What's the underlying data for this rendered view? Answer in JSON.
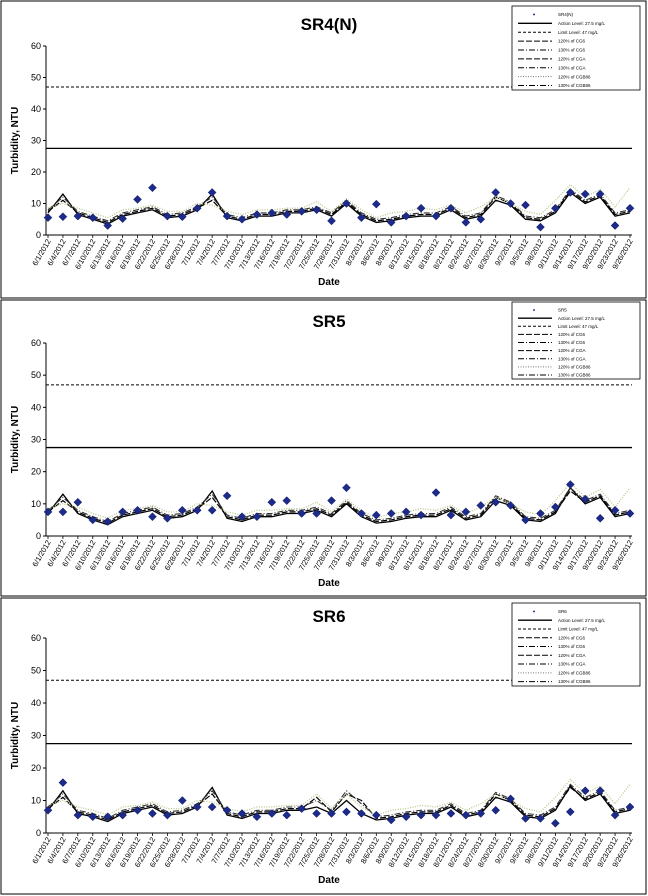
{
  "chart_data": [
    {
      "type": "line",
      "title": "SR4(N)",
      "xlabel": "Date",
      "ylabel": "Turbidity, NTU",
      "ylim": [
        0,
        60
      ],
      "yticks": [
        "0",
        "10",
        "20",
        "30",
        "40",
        "50",
        "60"
      ],
      "x": [
        "6/1/2012",
        "6/4/2012",
        "6/7/2012",
        "6/10/2012",
        "6/13/2012",
        "6/16/2012",
        "6/19/2012",
        "6/22/2012",
        "6/25/2012",
        "6/28/2012",
        "7/1/2012",
        "7/4/2012",
        "7/7/2012",
        "7/10/2012",
        "7/13/2012",
        "7/16/2012",
        "7/19/2012",
        "7/22/2012",
        "7/25/2012",
        "7/28/2012",
        "7/31/2012",
        "8/3/2012",
        "8/6/2012",
        "8/9/2012",
        "8/12/2012",
        "8/15/2012",
        "8/18/2012",
        "8/21/2012",
        "8/24/2012",
        "8/27/2012",
        "8/30/2012",
        "9/2/2012",
        "9/5/2012",
        "9/8/2012",
        "9/11/2012",
        "9/14/2012",
        "9/17/2012",
        "9/20/2012",
        "9/23/2012",
        "9/26/2012"
      ],
      "legend": [
        "SR4(N)",
        "Action Level: 27.5 mg/L",
        "Limit Level: 47 mg/L",
        "120% of CG6",
        "130% of CG6",
        "120% of CGA",
        "130% of CGA",
        "120% of CGB86",
        "130% of CGB86"
      ],
      "legend_position": "top-right",
      "reference_lines": [
        {
          "name": "Action Level: 27.5 mg/L",
          "value": 27.5,
          "style": "solid"
        },
        {
          "name": "Limit Level: 47 mg/L",
          "value": 47,
          "style": "dashed"
        }
      ],
      "series": [
        {
          "name": "SR4(N)",
          "style": "markers",
          "values": [
            5.5,
            5.8,
            6,
            5.5,
            3,
            5.2,
            11.3,
            15,
            6,
            5.8,
            8.5,
            13.5,
            6,
            5,
            6.5,
            7,
            6.5,
            7.5,
            8,
            4.5,
            10,
            5.5,
            9.8,
            4,
            6,
            8.5,
            6,
            8.5,
            4,
            5,
            13.5,
            10,
            9.5,
            2.5,
            8.5,
            13.5,
            13,
            13,
            3,
            8.5
          ]
        },
        {
          "name": "120% of CG6",
          "style": "solid",
          "values": [
            7,
            13,
            6.5,
            5,
            3.5,
            6,
            7,
            8,
            5.5,
            6,
            8,
            13,
            5.5,
            4.5,
            6,
            6,
            7,
            7,
            8,
            6,
            10,
            6,
            4,
            4.5,
            5.5,
            6,
            6,
            8,
            5,
            6,
            11,
            9.5,
            5,
            4.5,
            7,
            13.5,
            10,
            12,
            6,
            7
          ]
        },
        {
          "name": "130% of CG6",
          "style": "dash",
          "values": [
            7.5,
            11,
            7,
            5.5,
            4,
            6.5,
            7.5,
            8.5,
            6,
            6.5,
            8.5,
            11,
            6,
            5,
            6.5,
            6.5,
            7.5,
            7.5,
            8.5,
            6.5,
            10.5,
            6.5,
            4.5,
            5,
            6,
            6.5,
            6.5,
            8.5,
            5.5,
            6.5,
            12,
            10,
            5.5,
            5,
            7.5,
            14,
            10.5,
            12.5,
            6.5,
            7.5
          ]
        },
        {
          "name": "120% of CGA",
          "style": "dashdot",
          "values": [
            8,
            12,
            7.5,
            6,
            4.5,
            7,
            8,
            9,
            6.5,
            7,
            9,
            12,
            6.5,
            5.5,
            7,
            7,
            8,
            8,
            9,
            7,
            11,
            7,
            5,
            5.5,
            6.5,
            7,
            7,
            9,
            6,
            7,
            12.5,
            10.5,
            6,
            5.5,
            8,
            14.5,
            11,
            13,
            7,
            8
          ]
        },
        {
          "name": "130% of CGB86",
          "style": "dot",
          "values": [
            8.5,
            10,
            8.5,
            7,
            5.5,
            8,
            8.5,
            9.5,
            7.5,
            7.5,
            10,
            9.5,
            7.5,
            6.5,
            8,
            8,
            8.5,
            8.5,
            10.5,
            7.5,
            11.5,
            8,
            5.5,
            7,
            7.5,
            8.5,
            8,
            9.5,
            7,
            9,
            12,
            10,
            7.5,
            6.5,
            11,
            16,
            12,
            14.5,
            9,
            15
          ]
        }
      ]
    },
    {
      "type": "line",
      "title": "SR5",
      "xlabel": "Date",
      "ylabel": "Turbidity, NTU",
      "ylim": [
        0,
        60
      ],
      "yticks": [
        "0",
        "10",
        "20",
        "30",
        "40",
        "50",
        "60"
      ],
      "x": [
        "6/1/2012",
        "6/4/2012",
        "6/7/2012",
        "6/10/2012",
        "6/13/2012",
        "6/16/2012",
        "6/19/2012",
        "6/22/2012",
        "6/25/2012",
        "6/28/2012",
        "7/1/2012",
        "7/4/2012",
        "7/7/2012",
        "7/10/2012",
        "7/13/2012",
        "7/16/2012",
        "7/19/2012",
        "7/22/2012",
        "7/25/2012",
        "7/28/2012",
        "7/31/2012",
        "8/3/2012",
        "8/6/2012",
        "8/9/2012",
        "8/12/2012",
        "8/15/2012",
        "8/18/2012",
        "8/21/2012",
        "8/24/2012",
        "8/27/2012",
        "8/30/2012",
        "9/2/2012",
        "9/5/2012",
        "9/8/2012",
        "9/11/2012",
        "9/14/2012",
        "9/17/2012",
        "9/20/2012",
        "9/23/2012",
        "9/26/2012"
      ],
      "legend": [
        "SR5",
        "Action Level: 27.5 mg/L",
        "Limit Level: 47 mg/L",
        "120% of CG6",
        "130% of CG6",
        "120% of CGA",
        "130% of CGA",
        "120% of CGB86",
        "130% of CGB86"
      ],
      "legend_position": "top-right",
      "reference_lines": [
        {
          "name": "Action Level: 27.5 mg/L",
          "value": 27.5,
          "style": "solid"
        },
        {
          "name": "Limit Level: 47 mg/L",
          "value": 47,
          "style": "dashed"
        }
      ],
      "series": [
        {
          "name": "SR5",
          "style": "markers",
          "values": [
            7.5,
            7.5,
            10.5,
            5,
            4.5,
            7.5,
            8,
            6,
            5.5,
            8,
            8,
            8,
            12.5,
            6,
            6,
            10.5,
            11,
            7,
            7,
            11,
            15,
            7,
            6.5,
            7,
            7.5,
            6.5,
            13.5,
            6.5,
            7.5,
            9.5,
            10.5,
            9.5,
            5,
            7,
            9,
            16,
            11.5,
            5.5,
            8,
            7
          ]
        },
        {
          "name": "120% of CG6",
          "style": "solid",
          "values": [
            7,
            13,
            7,
            5,
            3.5,
            6,
            7,
            8,
            5.5,
            6,
            8,
            14,
            5.5,
            4.5,
            6,
            6,
            7,
            7,
            8,
            6,
            10,
            6,
            4,
            4.5,
            5.5,
            6,
            6,
            8,
            5,
            6,
            11,
            9.5,
            5,
            4.5,
            7,
            15,
            10,
            12,
            6,
            7
          ]
        },
        {
          "name": "130% of CG6",
          "style": "dash",
          "values": [
            7.5,
            11,
            7.5,
            5.5,
            4,
            6.5,
            7.5,
            8.5,
            6,
            6.5,
            8.5,
            12,
            6,
            5,
            6.5,
            6.5,
            7.5,
            7.5,
            8.5,
            6.5,
            10.5,
            6.5,
            4.5,
            5,
            6,
            6.5,
            6.5,
            8.5,
            5.5,
            6.5,
            12,
            10,
            5.5,
            5,
            7.5,
            14,
            10.5,
            12.5,
            6.5,
            7.5
          ]
        },
        {
          "name": "120% of CGA",
          "style": "dashdot",
          "values": [
            8,
            12,
            8,
            6,
            4.5,
            7,
            8,
            9,
            6.5,
            7,
            9,
            13,
            6.5,
            5.5,
            7,
            7,
            8,
            8,
            9,
            7,
            11,
            7,
            5,
            5.5,
            6.5,
            7,
            7,
            9,
            6,
            7,
            12.5,
            10.5,
            6,
            5.5,
            8,
            15,
            11,
            13,
            7,
            8
          ]
        },
        {
          "name": "130% of CGB86",
          "style": "dot",
          "values": [
            8.5,
            10,
            9,
            7,
            5.5,
            8,
            8.5,
            9.5,
            7.5,
            7.5,
            10,
            9.5,
            7.5,
            6.5,
            8,
            8,
            8.5,
            8.5,
            10.5,
            7.5,
            11.5,
            8,
            5.5,
            7,
            7.5,
            8.5,
            8,
            9.5,
            7,
            9,
            12,
            10,
            7.5,
            6.5,
            11,
            16.5,
            12,
            14.5,
            9,
            15
          ]
        }
      ]
    },
    {
      "type": "line",
      "title": "SR6",
      "xlabel": "Date",
      "ylabel": "Turbidity, NTU",
      "ylim": [
        0,
        60
      ],
      "yticks": [
        "0",
        "10",
        "20",
        "30",
        "40",
        "50",
        "60"
      ],
      "x": [
        "6/1/2012",
        "6/4/2012",
        "6/7/2012",
        "6/10/2012",
        "6/13/2012",
        "6/16/2012",
        "6/19/2012",
        "6/22/2012",
        "6/25/2012",
        "6/28/2012",
        "7/1/2012",
        "7/4/2012",
        "7/7/2012",
        "7/10/2012",
        "7/13/2012",
        "7/16/2012",
        "7/19/2012",
        "7/22/2012",
        "7/25/2012",
        "7/28/2012",
        "7/31/2012",
        "8/3/2012",
        "8/6/2012",
        "8/9/2012",
        "8/12/2012",
        "8/15/2012",
        "8/18/2012",
        "8/21/2012",
        "8/24/2012",
        "8/27/2012",
        "8/30/2012",
        "9/2/2012",
        "9/5/2012",
        "9/8/2012",
        "9/11/2012",
        "9/14/2012",
        "9/17/2012",
        "9/20/2012",
        "9/23/2012",
        "9/26/2012"
      ],
      "legend": [
        "SR6",
        "Action Level: 27.5 mg/L",
        "Limit Level: 47 mg/L",
        "120% of CG6",
        "130% of CG6",
        "120% of CGA",
        "130% of CGA",
        "120% of CGB86",
        "130% of CGB86"
      ],
      "legend_position": "top-right",
      "reference_lines": [
        {
          "name": "Action Level: 27.5 mg/L",
          "value": 27.5,
          "style": "solid"
        },
        {
          "name": "Limit Level: 47 mg/L",
          "value": 47,
          "style": "dashed"
        }
      ],
      "series": [
        {
          "name": "SR6",
          "style": "markers",
          "values": [
            7,
            15.5,
            5.5,
            5,
            5,
            5.5,
            7,
            6,
            5.5,
            10,
            8,
            8,
            7,
            6,
            5,
            6,
            5.5,
            7.5,
            6,
            6,
            6.5,
            6,
            5.5,
            4,
            5,
            5.5,
            5.5,
            6,
            5.5,
            6,
            7,
            10.5,
            4.5,
            4.5,
            3,
            6.5,
            13,
            13,
            5.5,
            8
          ]
        },
        {
          "name": "120% of CG6",
          "style": "solid",
          "values": [
            7,
            13,
            6,
            5,
            3.5,
            6,
            7,
            8,
            5.5,
            6,
            8,
            14,
            5.5,
            4.5,
            6,
            6,
            7,
            7,
            8,
            6,
            10,
            6,
            4,
            4.5,
            5.5,
            6,
            6,
            8,
            5,
            6,
            11,
            9.5,
            5,
            4.5,
            7,
            14.5,
            10,
            12,
            6,
            7
          ]
        },
        {
          "name": "130% of CG6",
          "style": "dash",
          "values": [
            7.5,
            11,
            6.5,
            5.5,
            4,
            6.5,
            7.5,
            8.5,
            6,
            6.5,
            8.5,
            12,
            6,
            5,
            6.5,
            6.5,
            7.5,
            7.5,
            11,
            6.5,
            12,
            10,
            4.5,
            5,
            6,
            6.5,
            6.5,
            8.5,
            5.5,
            6.5,
            12,
            10,
            5.5,
            5,
            7.5,
            14,
            10.5,
            12.5,
            6.5,
            7.5
          ]
        },
        {
          "name": "120% of CGA",
          "style": "dashdot",
          "values": [
            8,
            12,
            7,
            6,
            4.5,
            7,
            8,
            9,
            6.5,
            7,
            9,
            13,
            6.5,
            5.5,
            7,
            7,
            8,
            8,
            10,
            7,
            13,
            9,
            5,
            5.5,
            6.5,
            7,
            7,
            9,
            6,
            7,
            12.5,
            10.5,
            6,
            5.5,
            8,
            15,
            11,
            13,
            7,
            8
          ]
        },
        {
          "name": "130% of CGB86",
          "style": "dot",
          "values": [
            8.5,
            10,
            8,
            7,
            5.5,
            8,
            8.5,
            9.5,
            7.5,
            7.5,
            10,
            9.5,
            7.5,
            6.5,
            8,
            8,
            8.5,
            8.5,
            12,
            7.5,
            12,
            8,
            5.5,
            7,
            7.5,
            8.5,
            8,
            9.5,
            7,
            9,
            12,
            10,
            7.5,
            6.5,
            11,
            16.5,
            12,
            14.5,
            9,
            15
          ]
        }
      ]
    }
  ]
}
